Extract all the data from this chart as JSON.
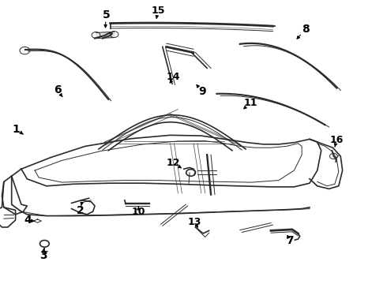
{
  "bg_color": "#ffffff",
  "line_color": "#2a2a2a",
  "label_color": "#000000",
  "lw_main": 1.2,
  "lw_thin": 0.7,
  "lw_thick": 2.0,
  "label_fontsize": 10,
  "labels": {
    "1": [
      0.055,
      0.455,
      0.085,
      0.47
    ],
    "2": [
      0.215,
      0.735,
      0.225,
      0.715
    ],
    "3": [
      0.115,
      0.895,
      0.115,
      0.875
    ],
    "4": [
      0.08,
      0.775,
      0.098,
      0.775
    ],
    "5": [
      0.283,
      0.055,
      0.28,
      0.09
    ],
    "6": [
      0.155,
      0.32,
      0.175,
      0.35
    ],
    "7": [
      0.755,
      0.845,
      0.745,
      0.825
    ],
    "8": [
      0.795,
      0.105,
      0.77,
      0.14
    ],
    "9": [
      0.525,
      0.325,
      0.505,
      0.295
    ],
    "10": [
      0.37,
      0.74,
      0.38,
      0.725
    ],
    "11": [
      0.655,
      0.365,
      0.635,
      0.39
    ],
    "12": [
      0.455,
      0.575,
      0.475,
      0.59
    ],
    "13": [
      0.51,
      0.78,
      0.515,
      0.8
    ],
    "14": [
      0.455,
      0.275,
      0.445,
      0.3
    ],
    "15": [
      0.415,
      0.04,
      0.405,
      0.075
    ],
    "16": [
      0.875,
      0.495,
      0.875,
      0.52
    ]
  }
}
